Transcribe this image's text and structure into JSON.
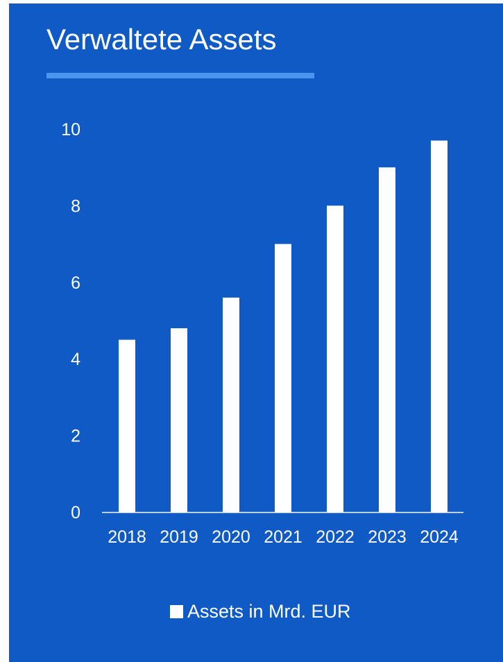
{
  "chart_data": {
    "type": "bar",
    "title": "Verwaltete Assets",
    "categories": [
      "2018",
      "2019",
      "2020",
      "2021",
      "2022",
      "2023",
      "2024"
    ],
    "series": [
      {
        "name": "Assets in Mrd. EUR",
        "values": [
          4.5,
          4.8,
          5.6,
          7.0,
          8.0,
          9.0,
          9.7
        ]
      }
    ],
    "ylim": [
      0,
      10
    ],
    "yticks": [
      "0",
      "2",
      "4",
      "6",
      "8",
      "10"
    ],
    "grid": false,
    "legend": "bottom-center"
  },
  "colors": {
    "background": "#0f5ac4",
    "bar": "#ffffff",
    "title_underline": "#4b95ef",
    "text": "#ffffff"
  }
}
